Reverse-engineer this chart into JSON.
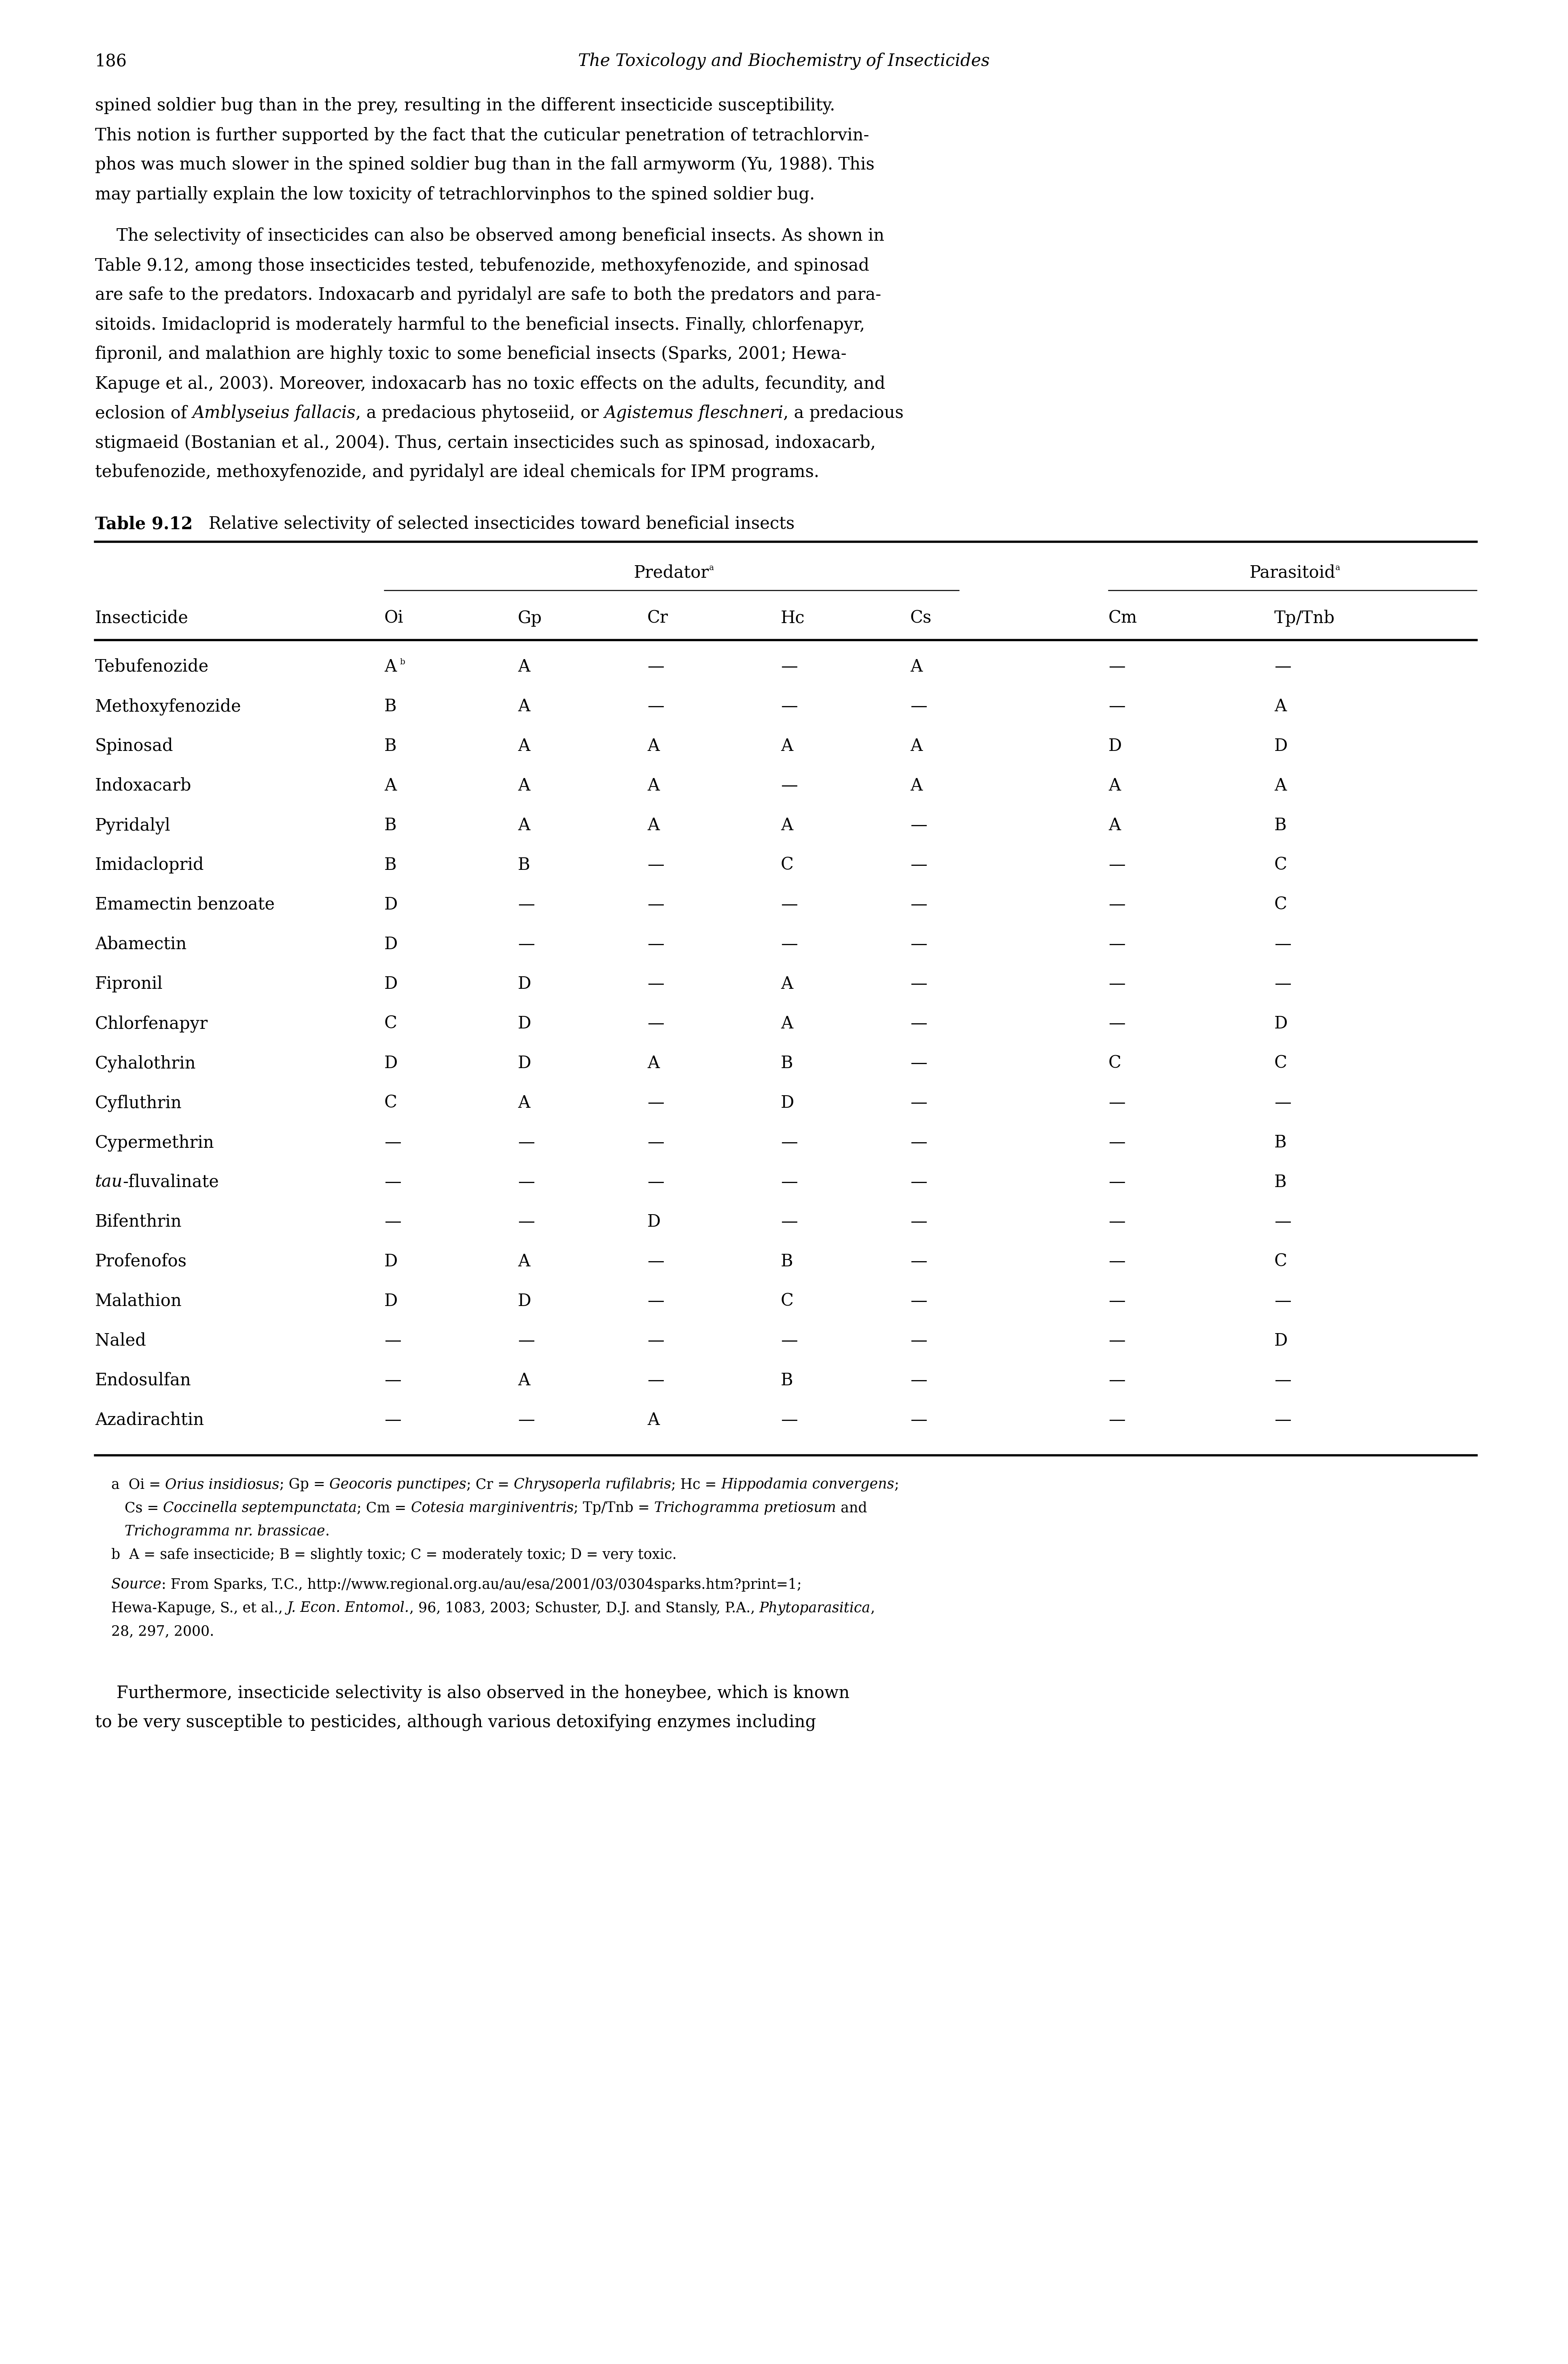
{
  "page_number": "186",
  "header_title": "The Toxicology and Biochemistry of Insecticides",
  "para1_lines": [
    "spined soldier bug than in the prey, resulting in the different insecticide susceptibility.",
    "This notion is further supported by the fact that the cuticular penetration of tetrachlorvin-",
    "phos was much slower in the spined soldier bug than in the fall armyworm (Yu, 1988). This",
    "may partially explain the low toxicity of tetrachlorvinphos to the spined soldier bug."
  ],
  "para2_lines": [
    [
      "    The selectivity of insecticides can also be observed among beneficial insects. As shown in",
      false
    ],
    [
      "Table 9.12, among those insecticides tested, tebufenozide, methoxyfenozide, and spinosad",
      false
    ],
    [
      "are safe to the predators. Indoxacarb and pyridalyl are safe to both the predators and para-",
      false
    ],
    [
      "sitoids. Imidacloprid is moderately harmful to the beneficial insects. Finally, chlorfenapyr,",
      false
    ],
    [
      "fipronil, and malathion are highly toxic to some beneficial insects (Sparks, 2001; Hewa-",
      false
    ],
    [
      "Kapuge et al., 2003). Moreover, indoxacarb has no toxic effects on the adults, fecundity, and",
      false
    ],
    [
      "eclosion of |Amblyseius fallacis|, a predacious phytoseiid, or |Agistemus fleschneri|, a predacious",
      true
    ],
    [
      "stigmaeid (Bostanian et al., 2004). Thus, certain insecticides such as spinosad, indoxacarb,",
      false
    ],
    [
      "tebufenozide, methoxyfenozide, and pyridalyl are ideal chemicals for IPM programs.",
      false
    ]
  ],
  "table_title_bold": "Table 9.12",
  "table_title_rest": "   Relative selectivity of selected insecticides toward beneficial insects",
  "col_headers_level2": [
    "Oi",
    "Gp",
    "Cr",
    "Hc",
    "Cs",
    "Cm",
    "Tp/Tnb"
  ],
  "row_label_header": "Insecticide",
  "rows": [
    [
      "Tebufenozide",
      "Ab",
      "A",
      "—",
      "—",
      "A",
      "—",
      "—"
    ],
    [
      "Methoxyfenozide",
      "B",
      "A",
      "—",
      "—",
      "—",
      "—",
      "A"
    ],
    [
      "Spinosad",
      "B",
      "A",
      "A",
      "A",
      "A",
      "D",
      "D"
    ],
    [
      "Indoxacarb",
      "A",
      "A",
      "A",
      "—",
      "A",
      "A",
      "A"
    ],
    [
      "Pyridalyl",
      "B",
      "A",
      "A",
      "A",
      "—",
      "A",
      "B"
    ],
    [
      "Imidacloprid",
      "B",
      "B",
      "—",
      "C",
      "—",
      "—",
      "C"
    ],
    [
      "Emamectin benzoate",
      "D",
      "—",
      "—",
      "—",
      "—",
      "—",
      "C"
    ],
    [
      "Abamectin",
      "D",
      "—",
      "—",
      "—",
      "—",
      "—",
      "—"
    ],
    [
      "Fipronil",
      "D",
      "D",
      "—",
      "A",
      "—",
      "—",
      "—"
    ],
    [
      "Chlorfenapyr",
      "C",
      "D",
      "—",
      "A",
      "—",
      "—",
      "D"
    ],
    [
      "Cyhalothrin",
      "D",
      "D",
      "A",
      "B",
      "—",
      "C",
      "C"
    ],
    [
      "Cyfluthrin",
      "C",
      "A",
      "—",
      "D",
      "—",
      "—",
      "—"
    ],
    [
      "Cypermethrin",
      "—",
      "—",
      "—",
      "—",
      "—",
      "—",
      "B"
    ],
    [
      "tau-fluvalinate",
      "—",
      "—",
      "—",
      "—",
      "—",
      "—",
      "B"
    ],
    [
      "Bifenthrin",
      "—",
      "—",
      "D",
      "—",
      "—",
      "—",
      "—"
    ],
    [
      "Profenofos",
      "D",
      "A",
      "—",
      "B",
      "—",
      "—",
      "C"
    ],
    [
      "Malathion",
      "D",
      "D",
      "—",
      "C",
      "—",
      "—",
      "—"
    ],
    [
      "Naled",
      "—",
      "—",
      "—",
      "—",
      "—",
      "—",
      "D"
    ],
    [
      "Endosulfan",
      "—",
      "A",
      "—",
      "B",
      "—",
      "—",
      "—"
    ],
    [
      "Azadirachtin",
      "—",
      "—",
      "A",
      "—",
      "—",
      "—",
      "—"
    ]
  ],
  "italic_row_idx": 13,
  "footnote_a_lines": [
    "a  Oi = |Orius insidiosus|; Gp = |Geocoris punctipes|; Cr = |Chrysoperla rufilabris|; Hc = |Hippodamia convergens|;",
    "   Cs = |Coccinella septempunctata|; Cm = |Cotesia marginiventris|; Tp/Tnb = |Trichogramma pretiosum| and",
    "   |Trichogramma nr. brassicae|."
  ],
  "footnote_b": "b  A = safe insecticide; B = slightly toxic; C = moderately toxic; D = very toxic.",
  "footnote_source_lines": [
    "|Source|: From Sparks, T.C., http://www.regional.org.au/au/esa/2001/03/0304sparks.htm?print=1;",
    "Hewa-Kapuge, S., et al., |J. Econ. Entomol.|, 96, 1083, 2003; Schuster, D.J. and Stansly, P.A., |Phytoparasitica|,",
    "28, 297, 2000."
  ],
  "para3_lines": [
    "    Furthermore, insecticide selectivity is also observed in the honeybee, which is known",
    "to be very susceptible to pesticides, although various detoxifying enzymes including"
  ],
  "bg_color": "#ffffff"
}
